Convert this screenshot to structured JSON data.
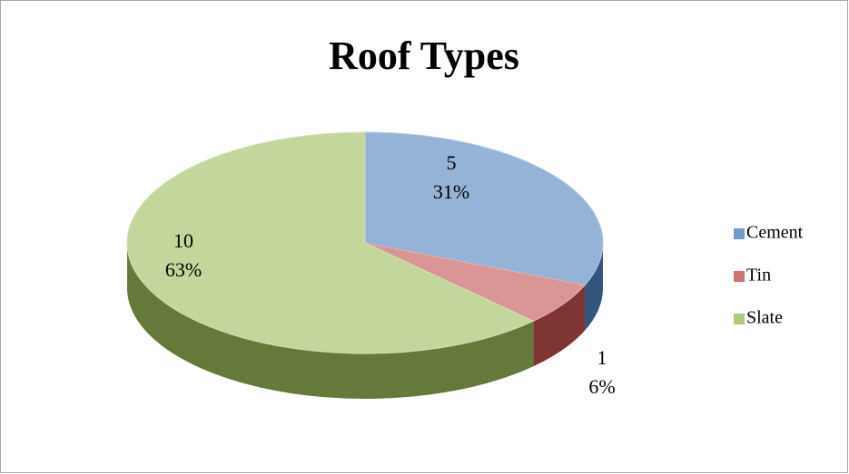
{
  "chart_data": {
    "type": "pie3d",
    "title": "Roof Types",
    "categories": [
      "Cement",
      "Tin",
      "Slate"
    ],
    "values": [
      5,
      1,
      10
    ],
    "percent_labels": [
      "31%",
      "6%",
      "63%"
    ],
    "colors": [
      "#4f81bd",
      "#c0504d",
      "#9bbb59"
    ],
    "legend": "right"
  }
}
